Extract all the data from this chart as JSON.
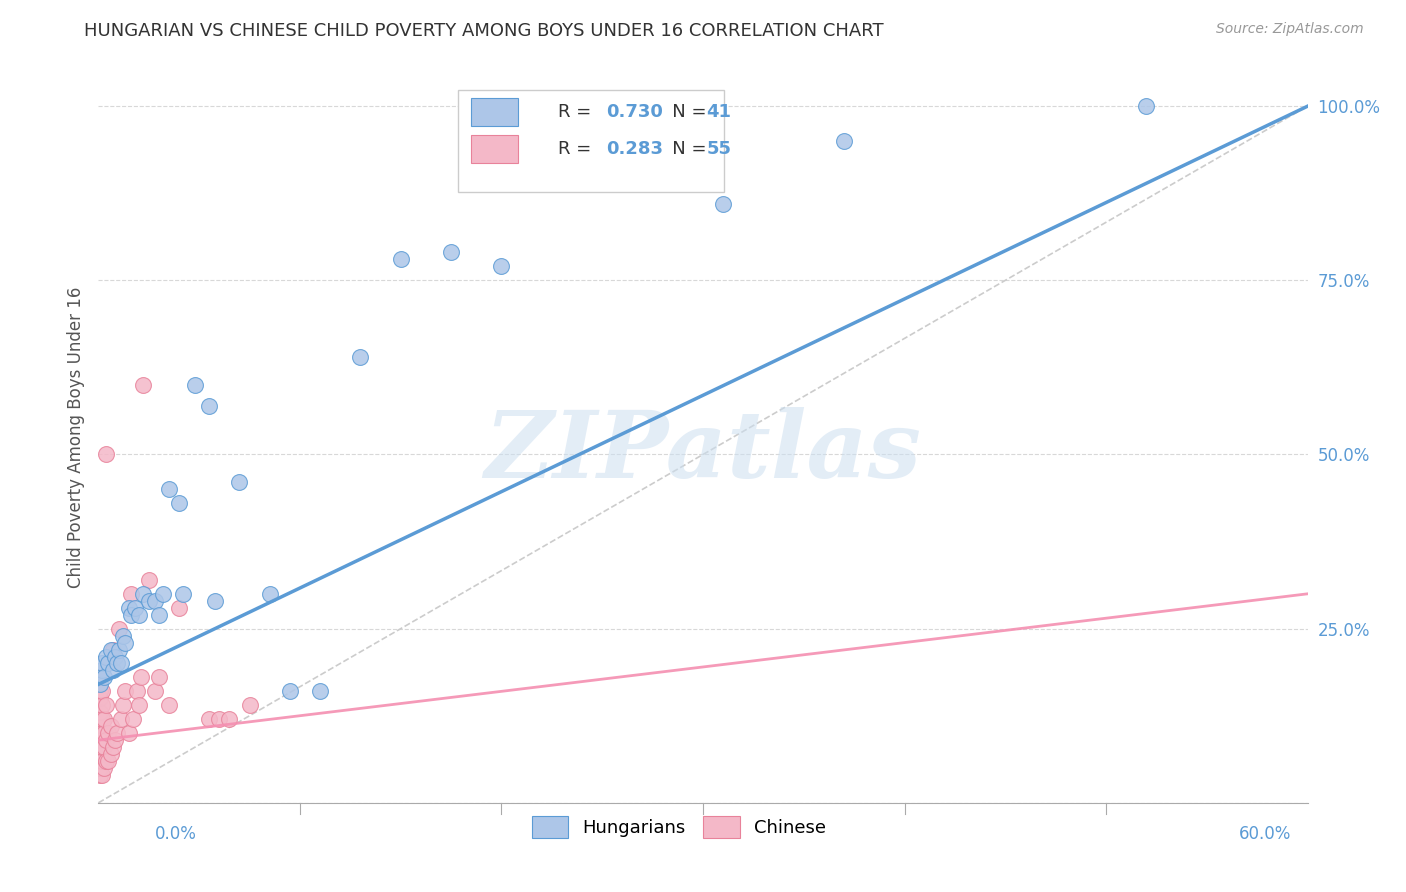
{
  "title": "HUNGARIAN VS CHINESE CHILD POVERTY AMONG BOYS UNDER 16 CORRELATION CHART",
  "source": "Source: ZipAtlas.com",
  "ylabel": "Child Poverty Among Boys Under 16",
  "watermark": "ZIPatlas",
  "hun_R": 0.73,
  "hun_N": 41,
  "chi_R": 0.283,
  "chi_N": 55,
  "hungarian_x": [
    0.001,
    0.002,
    0.002,
    0.003,
    0.004,
    0.005,
    0.006,
    0.007,
    0.008,
    0.009,
    0.01,
    0.011,
    0.012,
    0.013,
    0.015,
    0.016,
    0.018,
    0.02,
    0.022,
    0.025,
    0.028,
    0.03,
    0.032,
    0.035,
    0.04,
    0.042,
    0.048,
    0.055,
    0.058,
    0.07,
    0.085,
    0.095,
    0.11,
    0.13,
    0.15,
    0.175,
    0.2,
    0.27,
    0.31,
    0.37,
    0.52
  ],
  "hungarian_y": [
    0.17,
    0.19,
    0.2,
    0.18,
    0.21,
    0.2,
    0.22,
    0.19,
    0.21,
    0.2,
    0.22,
    0.2,
    0.24,
    0.23,
    0.28,
    0.27,
    0.28,
    0.27,
    0.3,
    0.29,
    0.29,
    0.27,
    0.3,
    0.45,
    0.43,
    0.3,
    0.6,
    0.57,
    0.29,
    0.46,
    0.3,
    0.16,
    0.16,
    0.64,
    0.78,
    0.79,
    0.77,
    0.91,
    0.86,
    0.95,
    1.0
  ],
  "chinese_x": [
    0.001,
    0.001,
    0.001,
    0.001,
    0.001,
    0.001,
    0.001,
    0.001,
    0.001,
    0.001,
    0.001,
    0.001,
    0.002,
    0.002,
    0.002,
    0.002,
    0.002,
    0.002,
    0.002,
    0.003,
    0.003,
    0.003,
    0.003,
    0.004,
    0.004,
    0.004,
    0.004,
    0.005,
    0.005,
    0.006,
    0.006,
    0.007,
    0.007,
    0.008,
    0.009,
    0.01,
    0.011,
    0.012,
    0.013,
    0.015,
    0.016,
    0.017,
    0.019,
    0.02,
    0.021,
    0.022,
    0.025,
    0.028,
    0.03,
    0.035,
    0.04,
    0.055,
    0.06,
    0.065,
    0.075
  ],
  "chinese_y": [
    0.04,
    0.05,
    0.06,
    0.07,
    0.08,
    0.09,
    0.1,
    0.12,
    0.13,
    0.15,
    0.16,
    0.18,
    0.04,
    0.06,
    0.08,
    0.1,
    0.12,
    0.14,
    0.16,
    0.05,
    0.08,
    0.1,
    0.12,
    0.06,
    0.09,
    0.14,
    0.5,
    0.06,
    0.1,
    0.07,
    0.11,
    0.08,
    0.22,
    0.09,
    0.1,
    0.25,
    0.12,
    0.14,
    0.16,
    0.1,
    0.3,
    0.12,
    0.16,
    0.14,
    0.18,
    0.6,
    0.32,
    0.16,
    0.18,
    0.14,
    0.28,
    0.12,
    0.12,
    0.12,
    0.14
  ],
  "blue_line_color": "#5b9bd5",
  "pink_line_color": "#f48fb1",
  "ref_line_color": "#cccccc",
  "dot_blue": "#adc6e8",
  "dot_pink": "#f4b8c8",
  "dot_blue_edge": "#5b9bd5",
  "dot_pink_edge": "#e8829a",
  "grid_color": "#d8d8d8",
  "background_color": "#ffffff",
  "title_color": "#333333",
  "source_color": "#999999",
  "ylabel_color": "#555555",
  "right_tick_color": "#5b9bd5",
  "xlim": [
    0,
    0.6
  ],
  "ylim": [
    0,
    1.05
  ],
  "yticks": [
    0.0,
    0.25,
    0.5,
    0.75,
    1.0
  ]
}
